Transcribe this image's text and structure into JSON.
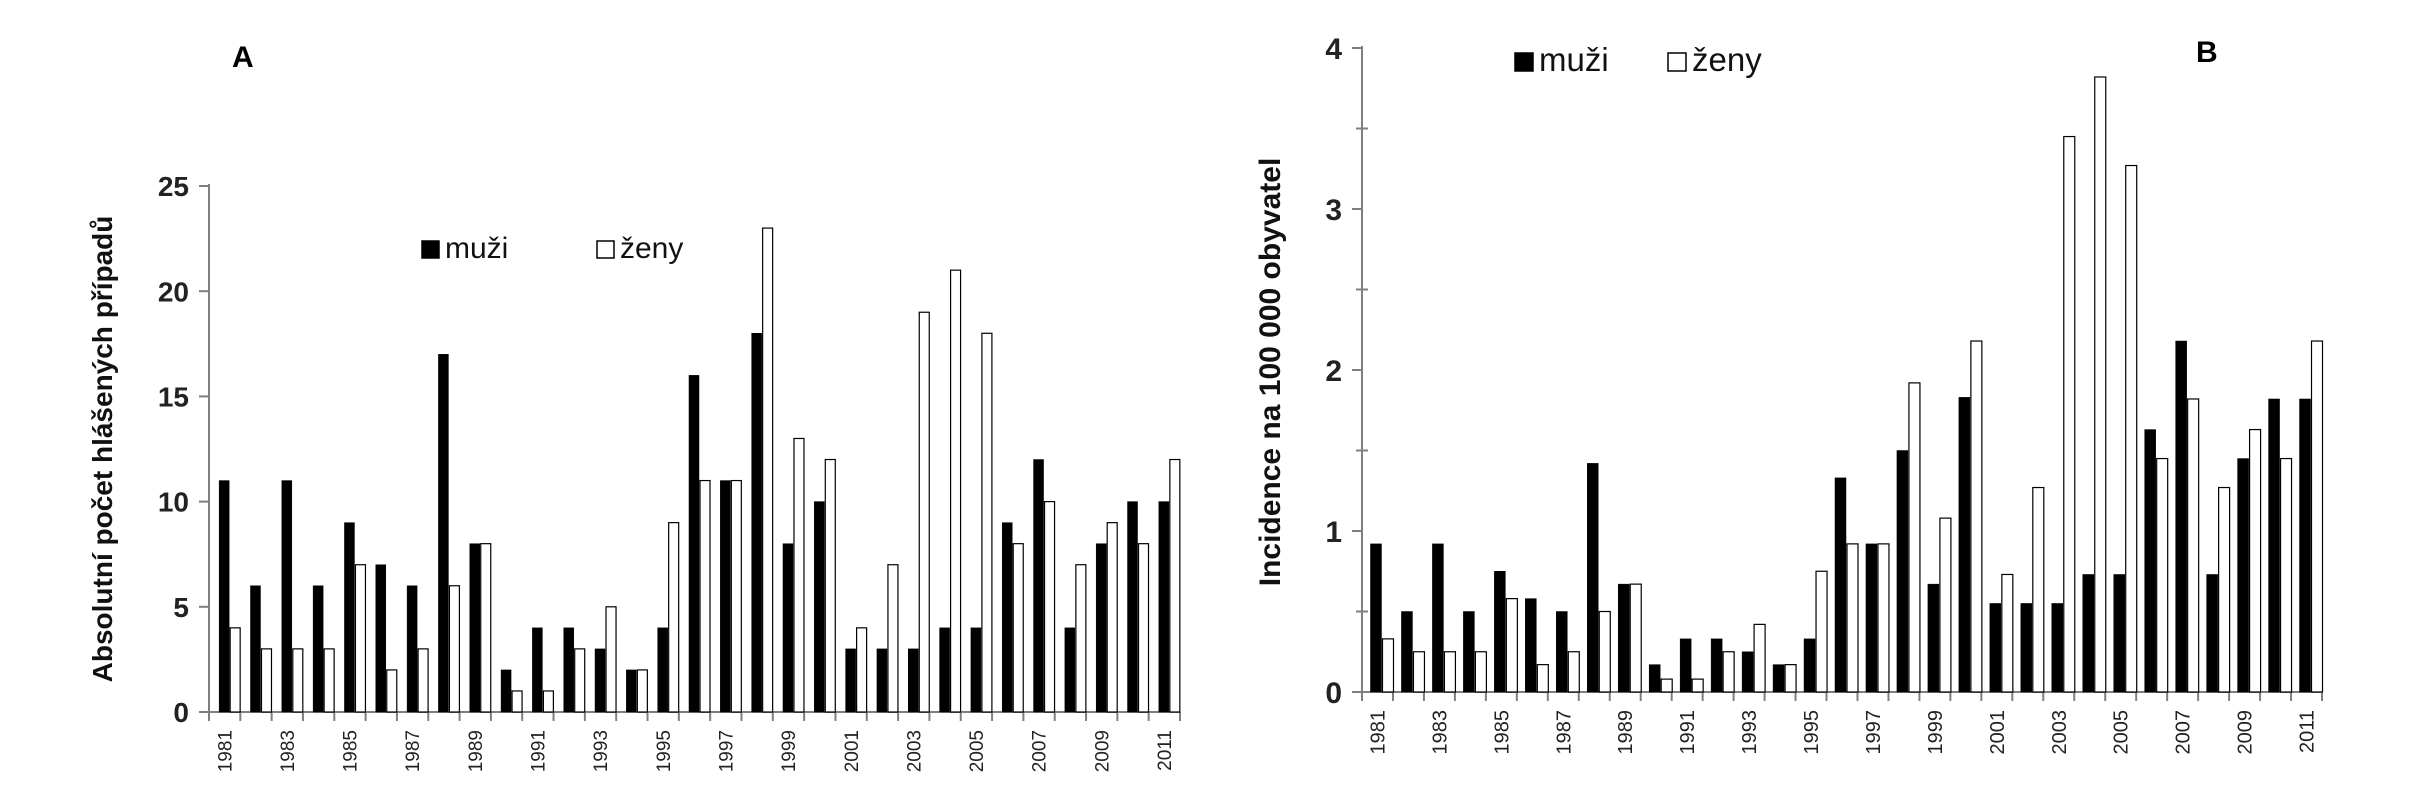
{
  "chart_data": [
    {
      "type": "bar",
      "panel_label": "A",
      "ylabel": "Absolutní počet hlášených případů",
      "ylim": [
        0,
        25
      ],
      "yticks": [
        "0",
        "5",
        "10",
        "15",
        "20",
        "25"
      ],
      "categories": [
        "1981",
        "1982",
        "1983",
        "1984",
        "1985",
        "1986",
        "1987",
        "1988",
        "1989",
        "1990",
        "1991",
        "1992",
        "1993",
        "1994",
        "1995",
        "1996",
        "1997",
        "1998",
        "1999",
        "2000",
        "2001",
        "2002",
        "2003",
        "2004",
        "2005",
        "2006",
        "2007",
        "2008",
        "2009",
        "2010",
        "2011"
      ],
      "xticklabels": [
        "1981",
        "1983",
        "1985",
        "1987",
        "1989",
        "1991",
        "1993",
        "1995",
        "1997",
        "1999",
        "2001",
        "2003",
        "2005",
        "2007",
        "2009",
        "2011"
      ],
      "series": [
        {
          "name": "muži",
          "color": "#000000",
          "values": [
            11,
            6,
            11,
            6,
            9,
            7,
            6,
            17,
            8,
            2,
            4,
            4,
            3,
            2,
            4,
            16,
            11,
            18,
            8,
            10,
            3,
            3,
            3,
            4,
            4,
            9,
            12,
            4,
            8,
            10,
            10
          ]
        },
        {
          "name": "ženy",
          "color": "#ffffff",
          "values": [
            4,
            3,
            3,
            3,
            7,
            2,
            3,
            6,
            8,
            1,
            1,
            3,
            5,
            2,
            9,
            11,
            11,
            23,
            13,
            12,
            4,
            7,
            19,
            21,
            18,
            8,
            10,
            7,
            9,
            8,
            12
          ]
        }
      ],
      "legend_position": "top-center",
      "grid": false
    },
    {
      "type": "bar",
      "panel_label": "B",
      "ylabel": "Incidence na 100 000 obyvatel",
      "ylim": [
        0,
        4
      ],
      "yticks": [
        "0",
        "1",
        "2",
        "3",
        "4"
      ],
      "categories": [
        "1981",
        "1982",
        "1983",
        "1984",
        "1985",
        "1986",
        "1987",
        "1988",
        "1989",
        "1990",
        "1991",
        "1992",
        "1993",
        "1994",
        "1995",
        "1996",
        "1997",
        "1998",
        "1999",
        "2000",
        "2001",
        "2002",
        "2003",
        "2004",
        "2005",
        "2006",
        "2007",
        "2008",
        "2009",
        "2010",
        "2011"
      ],
      "xticklabels": [
        "1981",
        "1983",
        "1985",
        "1987",
        "1989",
        "1991",
        "1993",
        "1995",
        "1997",
        "1999",
        "2001",
        "2003",
        "2005",
        "2007",
        "2009",
        "2011"
      ],
      "series": [
        {
          "name": "muži",
          "color": "#000000",
          "values": [
            0.92,
            0.5,
            0.92,
            0.5,
            0.75,
            0.58,
            0.5,
            1.42,
            0.67,
            0.17,
            0.33,
            0.33,
            0.25,
            0.17,
            0.33,
            1.33,
            0.92,
            1.5,
            0.67,
            1.83,
            0.55,
            0.55,
            0.55,
            0.73,
            0.73,
            1.63,
            2.18,
            0.73,
            1.45,
            1.82,
            1.82
          ]
        },
        {
          "name": "ženy",
          "color": "#ffffff",
          "values": [
            0.33,
            0.25,
            0.25,
            0.25,
            0.58,
            0.17,
            0.25,
            0.5,
            0.67,
            0.08,
            0.08,
            0.25,
            0.42,
            0.17,
            0.75,
            0.92,
            0.92,
            1.92,
            1.08,
            2.18,
            0.73,
            1.27,
            3.45,
            3.82,
            3.27,
            1.45,
            1.82,
            1.27,
            1.63,
            1.45,
            2.18
          ]
        }
      ],
      "legend_position": "top-left",
      "grid": false
    }
  ]
}
